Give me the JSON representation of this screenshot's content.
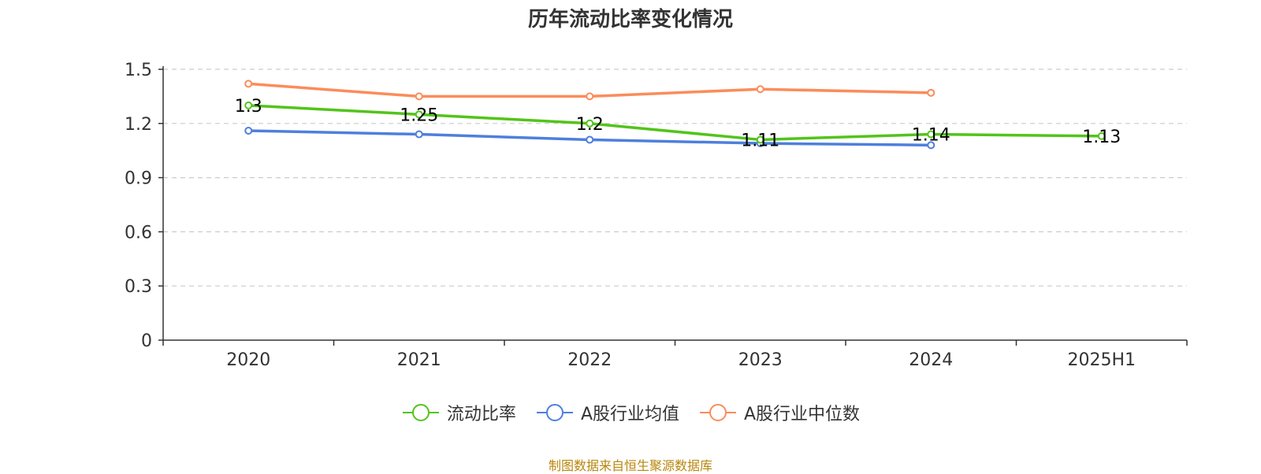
{
  "chart_data": {
    "type": "line",
    "title": "历年流动比率变化情况",
    "categories": [
      "2020",
      "2021",
      "2022",
      "2023",
      "2024",
      "2025H1"
    ],
    "ylim": [
      0,
      1.5
    ],
    "yticks": [
      "0",
      "0.3",
      "0.6",
      "0.9",
      "1.2",
      "1.5"
    ],
    "grid": true,
    "legend_position": "bottom",
    "series": [
      {
        "name": "流动比率",
        "color": "#52c41a",
        "values": [
          1.3,
          1.25,
          1.2,
          1.11,
          1.14,
          1.13
        ],
        "labels": [
          "1.3",
          "1.25",
          "1.2",
          "1.11",
          "1.14",
          "1.13"
        ]
      },
      {
        "name": "A股行业均值",
        "color": "#4e7fdd",
        "values": [
          1.16,
          1.14,
          1.11,
          1.09,
          1.08,
          null
        ]
      },
      {
        "name": "A股行业中位数",
        "color": "#fb8c5a",
        "values": [
          1.42,
          1.35,
          1.35,
          1.39,
          1.37,
          null
        ]
      }
    ]
  },
  "source_note": "制图数据来自恒生聚源数据库"
}
